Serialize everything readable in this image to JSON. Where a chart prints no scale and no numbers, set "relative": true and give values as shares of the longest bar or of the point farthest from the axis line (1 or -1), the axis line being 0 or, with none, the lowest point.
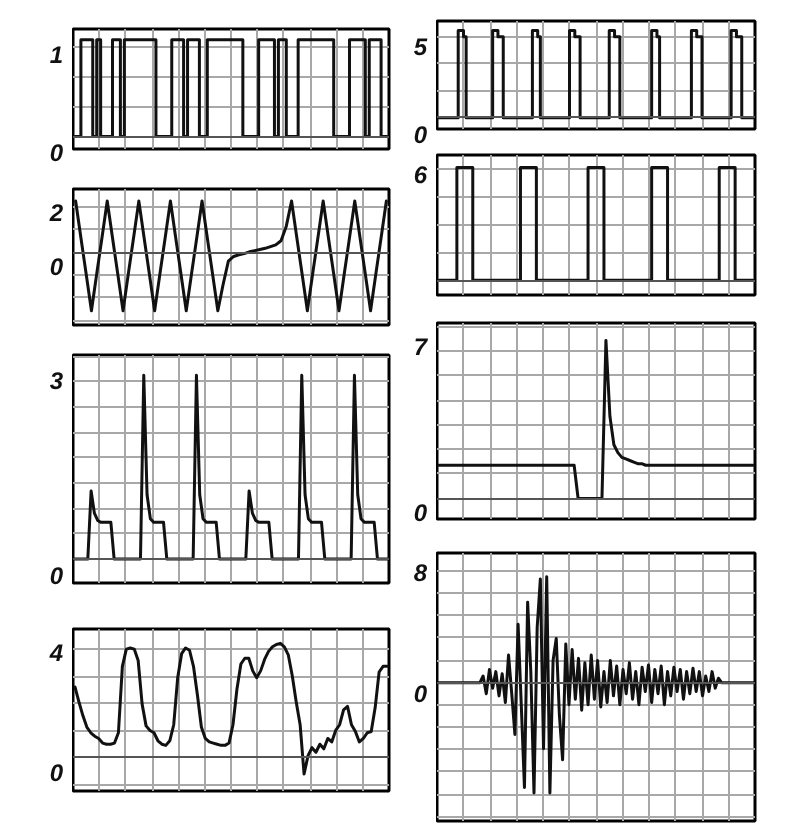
{
  "chart_data": [
    {
      "type": "step",
      "title": "1",
      "relative": true,
      "grid": true,
      "color": "#111111",
      "annotations": [
        "0"
      ],
      "categories": [
        null,
        null,
        null,
        null,
        null,
        null,
        null,
        null,
        null,
        null,
        null,
        null,
        null,
        null,
        null,
        null,
        null,
        null,
        null,
        null,
        null,
        null,
        null,
        null,
        null,
        null,
        null,
        null,
        null,
        null,
        null,
        null,
        null,
        null,
        null,
        null,
        null,
        null,
        null,
        null,
        null,
        null,
        null,
        null,
        null,
        null,
        null,
        null,
        null,
        null,
        null,
        null,
        null,
        null,
        null,
        null,
        null,
        null,
        null,
        null,
        null,
        null,
        null,
        null,
        null,
        null,
        null,
        null,
        null,
        null,
        null,
        null,
        null,
        null,
        null,
        null,
        null,
        null,
        null,
        null
      ],
      "values": [
        0,
        0,
        1,
        1,
        1,
        0,
        1,
        0,
        0,
        0,
        1,
        1,
        0,
        1,
        1,
        1,
        1,
        1,
        1,
        1,
        1,
        0,
        0,
        0,
        0,
        1,
        1,
        1,
        0,
        1,
        1,
        1,
        0,
        0,
        1,
        1,
        1,
        1,
        1,
        1,
        1,
        1,
        1,
        0,
        0,
        0,
        0,
        1,
        1,
        1,
        1,
        0,
        1,
        1,
        0,
        0,
        0,
        1,
        1,
        1,
        1,
        1,
        1,
        1,
        1,
        1,
        0,
        0,
        0,
        0,
        1,
        1,
        1,
        1,
        0,
        1,
        1,
        1,
        0,
        0
      ]
    },
    {
      "type": "line",
      "title": "2",
      "relative": true,
      "grid": true,
      "color": "#111111",
      "annotations": [
        "0"
      ],
      "categories": [
        null,
        null,
        null,
        null,
        null,
        null,
        null,
        null,
        null,
        null,
        null,
        null,
        null,
        null,
        null,
        null,
        null,
        null,
        null,
        null,
        null,
        null,
        null,
        null,
        null,
        null,
        null,
        null,
        null,
        null,
        null,
        null,
        null,
        null,
        null,
        null,
        null,
        null,
        null,
        null,
        null,
        null,
        null,
        null,
        null,
        null,
        null,
        null,
        null,
        null,
        null,
        null,
        null,
        null,
        null,
        null,
        null,
        null,
        null,
        null
      ],
      "values": [
        0.88,
        0.25,
        -0.37,
        -1,
        -0.37,
        0.25,
        0.88,
        0.25,
        -0.37,
        -1,
        -0.37,
        0.25,
        0.88,
        0.25,
        -0.37,
        -1,
        -0.37,
        0.25,
        0.88,
        0.25,
        -0.37,
        -1,
        -0.37,
        0.25,
        0.88,
        0.25,
        -0.37,
        -1,
        -0.55,
        -0.15,
        -0.07,
        -0.04,
        -0.02,
        0.01,
        0.03,
        0.05,
        0.07,
        0.1,
        0.13,
        0.2,
        0.45,
        0.88,
        0.25,
        -0.37,
        -1,
        -0.37,
        0.25,
        0.88,
        0.25,
        -0.37,
        -1,
        -0.37,
        0.25,
        0.88,
        0.25,
        -0.37,
        -1,
        -0.37,
        0.25,
        0.88
      ]
    },
    {
      "type": "line",
      "title": "3",
      "relative": true,
      "grid": true,
      "color": "#111111",
      "annotations": [
        "0"
      ],
      "categories": [
        null,
        null,
        null,
        null,
        null,
        null,
        null,
        null,
        null,
        null,
        null,
        null,
        null,
        null,
        null,
        null,
        null,
        null,
        null,
        null,
        null,
        null,
        null,
        null,
        null,
        null,
        null,
        null,
        null,
        null,
        null,
        null,
        null,
        null,
        null,
        null,
        null,
        null,
        null,
        null,
        null,
        null,
        null,
        null,
        null,
        null,
        null,
        null,
        null,
        null,
        null,
        null,
        null,
        null,
        null,
        null,
        null,
        null,
        null,
        null,
        null,
        null,
        null,
        null,
        null,
        null,
        null,
        null,
        null,
        null,
        null,
        null,
        null,
        null,
        null,
        null,
        null,
        null,
        null,
        null,
        null,
        null,
        null,
        null,
        null,
        null,
        null,
        null,
        null,
        null,
        null,
        null,
        null,
        null,
        null,
        null
      ],
      "values": [
        0,
        0,
        0,
        0,
        0,
        0.37,
        0.25,
        0.21,
        0.2,
        0.2,
        0.2,
        0.2,
        0,
        0,
        0,
        0,
        0,
        0,
        0,
        0,
        0,
        1,
        0.35,
        0.22,
        0.2,
        0.2,
        0.2,
        0.2,
        0,
        0,
        0,
        0,
        0,
        0,
        0,
        0,
        0,
        1,
        0.35,
        0.22,
        0.2,
        0.2,
        0.2,
        0.2,
        0,
        0,
        0,
        0,
        0,
        0,
        0,
        0,
        0,
        0.37,
        0.25,
        0.21,
        0.2,
        0.2,
        0.2,
        0.2,
        0,
        0,
        0,
        0,
        0,
        0,
        0,
        0,
        0,
        1,
        0.35,
        0.22,
        0.2,
        0.2,
        0.2,
        0.2,
        0,
        0,
        0,
        0,
        0,
        0,
        0,
        0,
        0,
        1,
        0.35,
        0.22,
        0.2,
        0.2,
        0.2,
        0.2,
        0,
        0,
        0,
        0
      ]
    },
    {
      "type": "line",
      "title": "4",
      "relative": true,
      "grid": true,
      "color": "#111111",
      "annotations": [
        "0"
      ],
      "categories": [
        null,
        null,
        null,
        null,
        null,
        null,
        null,
        null,
        null,
        null,
        null,
        null,
        null,
        null,
        null,
        null,
        null,
        null,
        null,
        null,
        null,
        null,
        null,
        null,
        null,
        null,
        null,
        null,
        null,
        null,
        null,
        null,
        null,
        null,
        null,
        null,
        null,
        null,
        null,
        null,
        null,
        null,
        null,
        null,
        null,
        null,
        null,
        null,
        null,
        null,
        null,
        null,
        null,
        null,
        null,
        null,
        null,
        null,
        null,
        null,
        null,
        null,
        null,
        null,
        null,
        null,
        null,
        null,
        null,
        null,
        null,
        null,
        null,
        null,
        null,
        null,
        null,
        null,
        null,
        null
      ],
      "values": [
        0.62,
        0.49,
        0.37,
        0.27,
        0.22,
        0.19,
        0.17,
        0.13,
        0.12,
        0.12,
        0.13,
        0.22,
        0.8,
        0.95,
        0.96,
        0.95,
        0.85,
        0.47,
        0.28,
        0.24,
        0.22,
        0.15,
        0.12,
        0.11,
        0.15,
        0.29,
        0.7,
        0.91,
        0.96,
        0.94,
        0.8,
        0.55,
        0.27,
        0.17,
        0.14,
        0.13,
        0.12,
        0.11,
        0.11,
        0.13,
        0.29,
        0.6,
        0.82,
        0.87,
        0.87,
        0.76,
        0.7,
        0.76,
        0.86,
        0.93,
        0.97,
        0.99,
        1,
        0.97,
        0.9,
        0.72,
        0.49,
        0.29,
        -0.14,
        0.02,
        0.09,
        0.05,
        0.12,
        0.08,
        0.17,
        0.14,
        0.24,
        0.29,
        0.42,
        0.45,
        0.29,
        0.23,
        0.14,
        0.17,
        0.22,
        0.23,
        0.44,
        0.75,
        0.8,
        0.8
      ]
    },
    {
      "type": "step",
      "title": "5",
      "relative": true,
      "grid": true,
      "color": "#111111",
      "annotations": [
        "0"
      ],
      "categories": [
        null,
        null,
        null,
        null,
        null,
        null,
        null,
        null,
        null,
        null,
        null,
        null,
        null,
        null,
        null,
        null,
        null,
        null,
        null,
        null,
        null,
        null,
        null,
        null,
        null,
        null,
        null,
        null,
        null,
        null,
        null,
        null,
        null,
        null,
        null,
        null,
        null,
        null,
        null,
        null,
        null,
        null,
        null,
        null,
        null,
        null,
        null,
        null,
        null,
        null,
        null,
        null,
        null,
        null,
        null,
        null,
        null,
        null,
        null,
        null,
        null,
        null,
        null,
        null,
        null,
        null,
        null,
        null,
        null,
        null,
        null,
        null,
        null,
        null,
        null,
        null,
        null,
        null,
        null,
        null,
        null,
        null,
        null,
        null,
        null,
        null,
        null,
        null,
        null,
        null,
        null,
        null,
        null,
        null,
        null,
        null,
        null,
        null,
        null,
        null,
        null,
        null,
        null,
        null,
        null,
        null,
        null,
        null,
        null,
        null,
        null,
        null,
        null,
        null,
        null,
        null,
        null,
        null,
        null,
        null
      ],
      "values": [
        0,
        0,
        0,
        0,
        0,
        0,
        0,
        0,
        1,
        1,
        0.93,
        0,
        0,
        0,
        0,
        0,
        0,
        0,
        0,
        0,
        0,
        1,
        1,
        0.93,
        0.93,
        0,
        0,
        0,
        0,
        0,
        0,
        0,
        0,
        0,
        0,
        0,
        1,
        1,
        0.93,
        0,
        0,
        0,
        0,
        0,
        0,
        0,
        0,
        0,
        0,
        0,
        1,
        1,
        0.93,
        0.93,
        0,
        0,
        0,
        0,
        0,
        0,
        0,
        0,
        0,
        0,
        0,
        1,
        1,
        0.93,
        0.93,
        0,
        0,
        0,
        0,
        0,
        0,
        0,
        0,
        0,
        0,
        0,
        0,
        1,
        1,
        0.93,
        0,
        0,
        0,
        0,
        0,
        0,
        0,
        0,
        0,
        0,
        0,
        0,
        1,
        1,
        0.93,
        0.93,
        0,
        0,
        0,
        0,
        0,
        0,
        0,
        0,
        0,
        0,
        0,
        1,
        1,
        0.93,
        0.93,
        0,
        0,
        0,
        0,
        0
      ]
    },
    {
      "type": "step",
      "title": "6",
      "relative": true,
      "grid": true,
      "color": "#111111",
      "categories": [
        null,
        null,
        null,
        null,
        null,
        null,
        null,
        null,
        null,
        null,
        null,
        null,
        null,
        null,
        null,
        null,
        null,
        null,
        null,
        null,
        null,
        null,
        null,
        null,
        null,
        null,
        null,
        null,
        null,
        null,
        null,
        null,
        null,
        null,
        null,
        null,
        null,
        null,
        null,
        null,
        null,
        null,
        null,
        null,
        null,
        null,
        null,
        null,
        null,
        null,
        null,
        null,
        null,
        null,
        null,
        null,
        null,
        null,
        null,
        null,
        null,
        null,
        null,
        null,
        null,
        null,
        null,
        null,
        null,
        null,
        null,
        null,
        null,
        null,
        null,
        null,
        null,
        null,
        null,
        null
      ],
      "values": [
        0,
        0,
        0,
        0,
        0,
        1,
        1,
        1,
        1,
        0,
        0,
        0,
        0,
        0,
        0,
        0,
        0,
        0,
        0,
        0,
        0,
        1,
        1,
        1,
        1,
        0,
        0,
        0,
        0,
        0,
        0,
        0,
        0,
        0,
        0,
        0,
        0,
        0,
        1,
        1,
        1,
        1,
        0,
        0,
        0,
        0,
        0,
        0,
        0,
        0,
        0,
        0,
        0,
        0,
        1,
        1,
        1,
        1,
        0,
        0,
        0,
        0,
        0,
        0,
        0,
        0,
        0,
        0,
        0,
        0,
        0,
        1,
        1,
        1,
        1,
        0,
        0,
        0,
        0,
        0
      ]
    },
    {
      "type": "line",
      "title": "7",
      "relative": true,
      "grid": true,
      "color": "#111111",
      "annotations": [
        "0"
      ],
      "categories": [
        null,
        null,
        null,
        null,
        null,
        null,
        null,
        null,
        null,
        null,
        null,
        null,
        null,
        null,
        null,
        null,
        null,
        null,
        null,
        null,
        null,
        null,
        null,
        null,
        null,
        null,
        null,
        null,
        null,
        null,
        null,
        null,
        null,
        null,
        null,
        null,
        null,
        null,
        null,
        null,
        null,
        null,
        null,
        null,
        null,
        null,
        null,
        null,
        null,
        null,
        null,
        null,
        null,
        null,
        null,
        null,
        null,
        null,
        null,
        null,
        null,
        null,
        null,
        null,
        null,
        null,
        null,
        null,
        null,
        null,
        null,
        null,
        null,
        null,
        null,
        null,
        null,
        null,
        null,
        null
      ],
      "values": [
        0.21,
        0.21,
        0.21,
        0.21,
        0.21,
        0.21,
        0.21,
        0.21,
        0.21,
        0.21,
        0.21,
        0.21,
        0.21,
        0.21,
        0.21,
        0.21,
        0.21,
        0.21,
        0.21,
        0.21,
        0.21,
        0.21,
        0.21,
        0.21,
        0.21,
        0.21,
        0.21,
        0.21,
        0.21,
        0.21,
        0.21,
        0.21,
        0.21,
        0.21,
        0.21,
        0,
        0,
        0,
        0,
        0,
        0,
        0,
        1,
        0.52,
        0.34,
        0.29,
        0.26,
        0.25,
        0.24,
        0.23,
        0.22,
        0.22,
        0.21,
        0.21,
        0.21,
        0.21,
        0.21,
        0.21,
        0.21,
        0.21,
        0.21,
        0.21,
        0.21,
        0.21,
        0.21,
        0.21,
        0.21,
        0.21,
        0.21,
        0.21,
        0.21,
        0.21,
        0.21,
        0.21,
        0.21,
        0.21,
        0.21,
        0.21,
        0.21,
        0.21
      ]
    },
    {
      "type": "line",
      "title": "8",
      "relative": true,
      "grid": true,
      "color": "#111111",
      "annotations": [
        "0"
      ],
      "categories": [
        null,
        null,
        null,
        null,
        null,
        null,
        null,
        null,
        null,
        null,
        null,
        null,
        null,
        null,
        null,
        null,
        null,
        null,
        null,
        null,
        null,
        null,
        null,
        null,
        null,
        null,
        null,
        null,
        null,
        null,
        null,
        null,
        null,
        null,
        null,
        null,
        null,
        null,
        null,
        null,
        null,
        null,
        null,
        null,
        null,
        null,
        null,
        null,
        null,
        null,
        null,
        null,
        null,
        null,
        null,
        null,
        null,
        null,
        null,
        null,
        null,
        null,
        null,
        null,
        null,
        null,
        null,
        null,
        null,
        null,
        null,
        null,
        null,
        null,
        null,
        null,
        null,
        null,
        null,
        null,
        null,
        null,
        null,
        null,
        null,
        null,
        null,
        null,
        null,
        null,
        null,
        null,
        null,
        null,
        null,
        null,
        null,
        null,
        null,
        null
      ],
      "values": [
        0,
        0,
        0,
        0,
        0,
        0,
        0,
        0,
        0,
        0,
        0,
        0,
        0,
        0,
        0.06,
        -0.1,
        0.12,
        -0.05,
        0.1,
        -0.12,
        0.08,
        -0.18,
        0.25,
        -0.1,
        -0.47,
        0.53,
        -0.2,
        -0.95,
        0.73,
        0.1,
        -1,
        0.5,
        0.94,
        -0.6,
        0.96,
        -1,
        0.2,
        0.4,
        -0.3,
        -0.7,
        0.35,
        -0.2,
        0.3,
        -0.15,
        0.22,
        -0.25,
        0.18,
        -0.2,
        0.25,
        -0.15,
        0.2,
        -0.22,
        0.1,
        -0.18,
        0.2,
        -0.12,
        0.15,
        -0.2,
        0.12,
        -0.1,
        0.18,
        -0.15,
        0.1,
        -0.2,
        0.14,
        -0.08,
        0.16,
        -0.18,
        0.12,
        -0.1,
        0.15,
        -0.2,
        0.1,
        -0.12,
        0.14,
        -0.08,
        0.12,
        -0.15,
        0.1,
        -0.1,
        0.13,
        -0.08,
        0.1,
        -0.12,
        0.06,
        -0.08,
        0.1,
        -0.05,
        0.04,
        0,
        0,
        0,
        0,
        0,
        0,
        0,
        0,
        0,
        0,
        0
      ]
    }
  ]
}
